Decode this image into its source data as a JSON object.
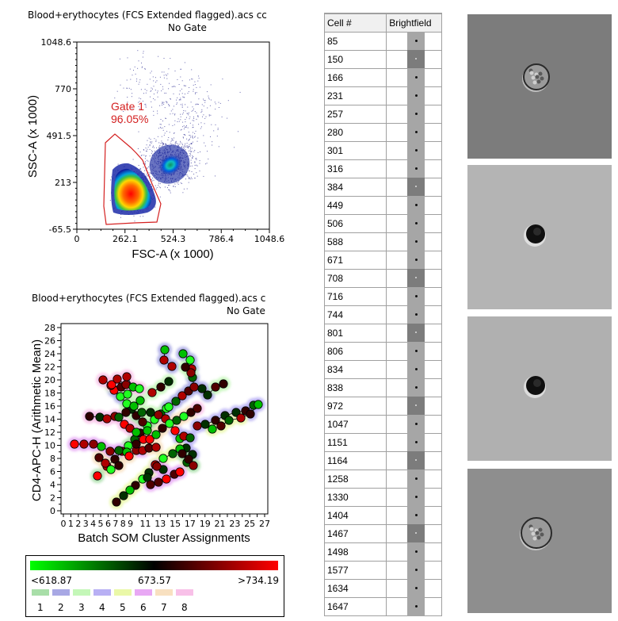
{
  "scatter_plot": {
    "title": "Blood+erythocytes (FCS Extended flagged).acs cc",
    "subtitle": "No Gate",
    "xlabel": "FSC-A (x 1000)",
    "ylabel": "SSC-A (x 1000)",
    "x_ticks": [
      "0",
      "262.1",
      "524.3",
      "786.4",
      "1048.6"
    ],
    "y_ticks": [
      "1048.6",
      "770",
      "491.5",
      "213",
      "-65.5"
    ],
    "gate": {
      "name": "Gate 1",
      "percent": "96.05%",
      "color": "#d42020"
    }
  },
  "som_plot": {
    "title": "Blood+erythocytes (FCS Extended flagged).acs c",
    "subtitle": "No Gate",
    "xlabel": "Batch SOM Cluster Assignments",
    "ylabel": "CD4-APC-H (Arithmetic Mean)",
    "x_ticks": [
      "0",
      "1",
      "2",
      "3",
      "4",
      "5",
      "6",
      "7",
      "8",
      "9",
      "11",
      "13",
      "15",
      "17",
      "19",
      "21",
      "23",
      "25",
      "27"
    ],
    "y_ticks": [
      "0",
      "2",
      "4",
      "6",
      "8",
      "10",
      "12",
      "14",
      "16",
      "18",
      "20",
      "22",
      "24",
      "26",
      "28"
    ]
  },
  "legend": {
    "min_label": "<618.87",
    "mid_label": "673.57",
    "max_label": ">734.19",
    "gradient": [
      "#00ff00",
      "#000000",
      "#ff0000"
    ],
    "clusters": [
      {
        "label": "1",
        "color": "#a8dea8"
      },
      {
        "label": "2",
        "color": "#a8a8e4"
      },
      {
        "label": "3",
        "color": "#c4f7b8"
      },
      {
        "label": "4",
        "color": "#b8b0f4"
      },
      {
        "label": "5",
        "color": "#eaf8a8"
      },
      {
        "label": "6",
        "color": "#e8a8f4"
      },
      {
        "label": "7",
        "color": "#f8e0c0"
      },
      {
        "label": "8",
        "color": "#f8c0e8"
      }
    ]
  },
  "table": {
    "headers": [
      "Cell #",
      "Brightfield"
    ],
    "rows": [
      {
        "cell": "85",
        "dark": false
      },
      {
        "cell": "150",
        "dark": true
      },
      {
        "cell": "166",
        "dark": false
      },
      {
        "cell": "231",
        "dark": false
      },
      {
        "cell": "257",
        "dark": false
      },
      {
        "cell": "280",
        "dark": false
      },
      {
        "cell": "301",
        "dark": false
      },
      {
        "cell": "316",
        "dark": false
      },
      {
        "cell": "384",
        "dark": true
      },
      {
        "cell": "449",
        "dark": false
      },
      {
        "cell": "506",
        "dark": false
      },
      {
        "cell": "588",
        "dark": false
      },
      {
        "cell": "671",
        "dark": false
      },
      {
        "cell": "708",
        "dark": true
      },
      {
        "cell": "716",
        "dark": false
      },
      {
        "cell": "744",
        "dark": false
      },
      {
        "cell": "801",
        "dark": true
      },
      {
        "cell": "806",
        "dark": false
      },
      {
        "cell": "834",
        "dark": false
      },
      {
        "cell": "838",
        "dark": false
      },
      {
        "cell": "972",
        "dark": true
      },
      {
        "cell": "1047",
        "dark": false
      },
      {
        "cell": "1151",
        "dark": false
      },
      {
        "cell": "1164",
        "dark": true
      },
      {
        "cell": "1258",
        "dark": false
      },
      {
        "cell": "1330",
        "dark": false
      },
      {
        "cell": "1404",
        "dark": false
      },
      {
        "cell": "1467",
        "dark": true
      },
      {
        "cell": "1498",
        "dark": false
      },
      {
        "cell": "1577",
        "dark": false
      },
      {
        "cell": "1634",
        "dark": false
      },
      {
        "cell": "1647",
        "dark": false
      }
    ]
  },
  "cell_images": [
    {
      "type": "granular-cell",
      "background": "#7c7c7c"
    },
    {
      "type": "dark-cell",
      "background": "#b4b4b4"
    },
    {
      "type": "dark-cell",
      "background": "#b0b0b0"
    },
    {
      "type": "granular-cell",
      "background": "#8e8e8e"
    }
  ]
}
